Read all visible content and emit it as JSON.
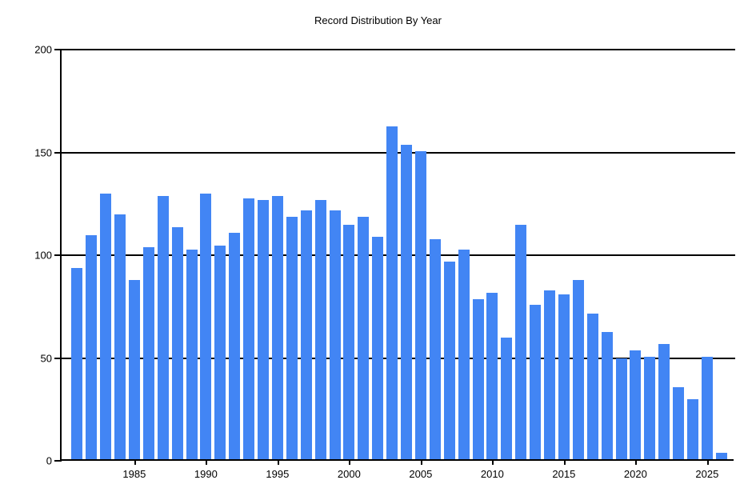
{
  "title": "Record Distribution By Year",
  "colors": {
    "bar": "#4285f4",
    "axis": "#000000",
    "background": "#ffffff"
  },
  "chart_data": {
    "type": "bar",
    "title": "Record Distribution By Year",
    "xlabel": "",
    "ylabel": "",
    "ylim": [
      0,
      200
    ],
    "y_ticks": [
      0,
      50,
      100,
      150,
      200
    ],
    "x_tick_labels": [
      "1985",
      "1990",
      "1995",
      "2000",
      "2005",
      "2010",
      "2015",
      "2020",
      "2025"
    ],
    "grid": true,
    "legend_position": "none",
    "categories": [
      1981,
      1982,
      1983,
      1984,
      1985,
      1986,
      1987,
      1988,
      1989,
      1990,
      1991,
      1992,
      1993,
      1994,
      1995,
      1996,
      1997,
      1998,
      1999,
      2000,
      2001,
      2002,
      2003,
      2004,
      2005,
      2006,
      2007,
      2008,
      2009,
      2010,
      2011,
      2012,
      2013,
      2014,
      2015,
      2016,
      2017,
      2018,
      2019,
      2020,
      2021,
      2022,
      2023,
      2024,
      2025,
      2026
    ],
    "values": [
      93,
      109,
      129,
      119,
      87,
      103,
      128,
      113,
      102,
      129,
      104,
      110,
      127,
      126,
      128,
      118,
      121,
      126,
      121,
      114,
      118,
      108,
      162,
      153,
      150,
      107,
      96,
      102,
      78,
      81,
      59,
      114,
      75,
      82,
      80,
      87,
      71,
      62,
      49,
      53,
      50,
      56,
      35,
      29,
      50,
      3
    ]
  }
}
